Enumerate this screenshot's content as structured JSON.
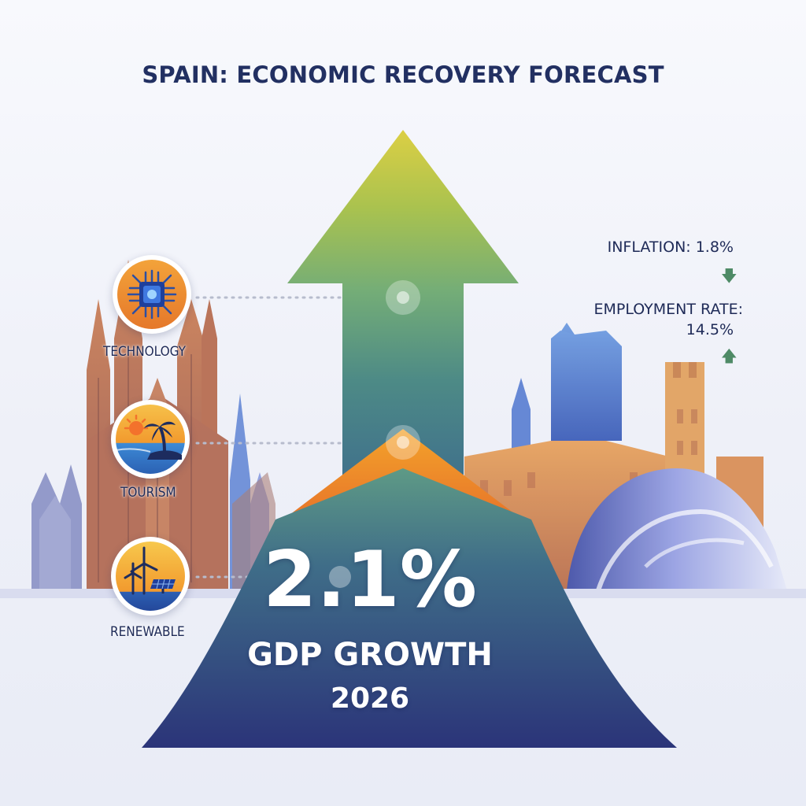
{
  "title": "SPAIN: ECONOMIC RECOVERY FORECAST",
  "sectors": [
    {
      "label": "TECHNOLOGY",
      "icon": "chip-icon"
    },
    {
      "label": "TOURISM",
      "icon": "palm-beach-icon"
    },
    {
      "label": "RENEWABLE",
      "icon": "wind-solar-icon"
    }
  ],
  "stats": {
    "inflation": {
      "label": "INFLATION: 1.8%",
      "trend": "down"
    },
    "employment": {
      "label": "EMPLOYMENT RATE:",
      "value": "14.5%",
      "trend": "up"
    }
  },
  "headline": {
    "value": "2.1%",
    "label": "GDP GROWTH",
    "year": "2026"
  },
  "colors": {
    "title": "#223062",
    "arrow_top": "#d7cf45",
    "arrow_mid": "#6aa77c",
    "arrow_bottom": "#2d3a7e",
    "accent_orange": "#f39a1f",
    "trend_green": "#4e8a66"
  }
}
